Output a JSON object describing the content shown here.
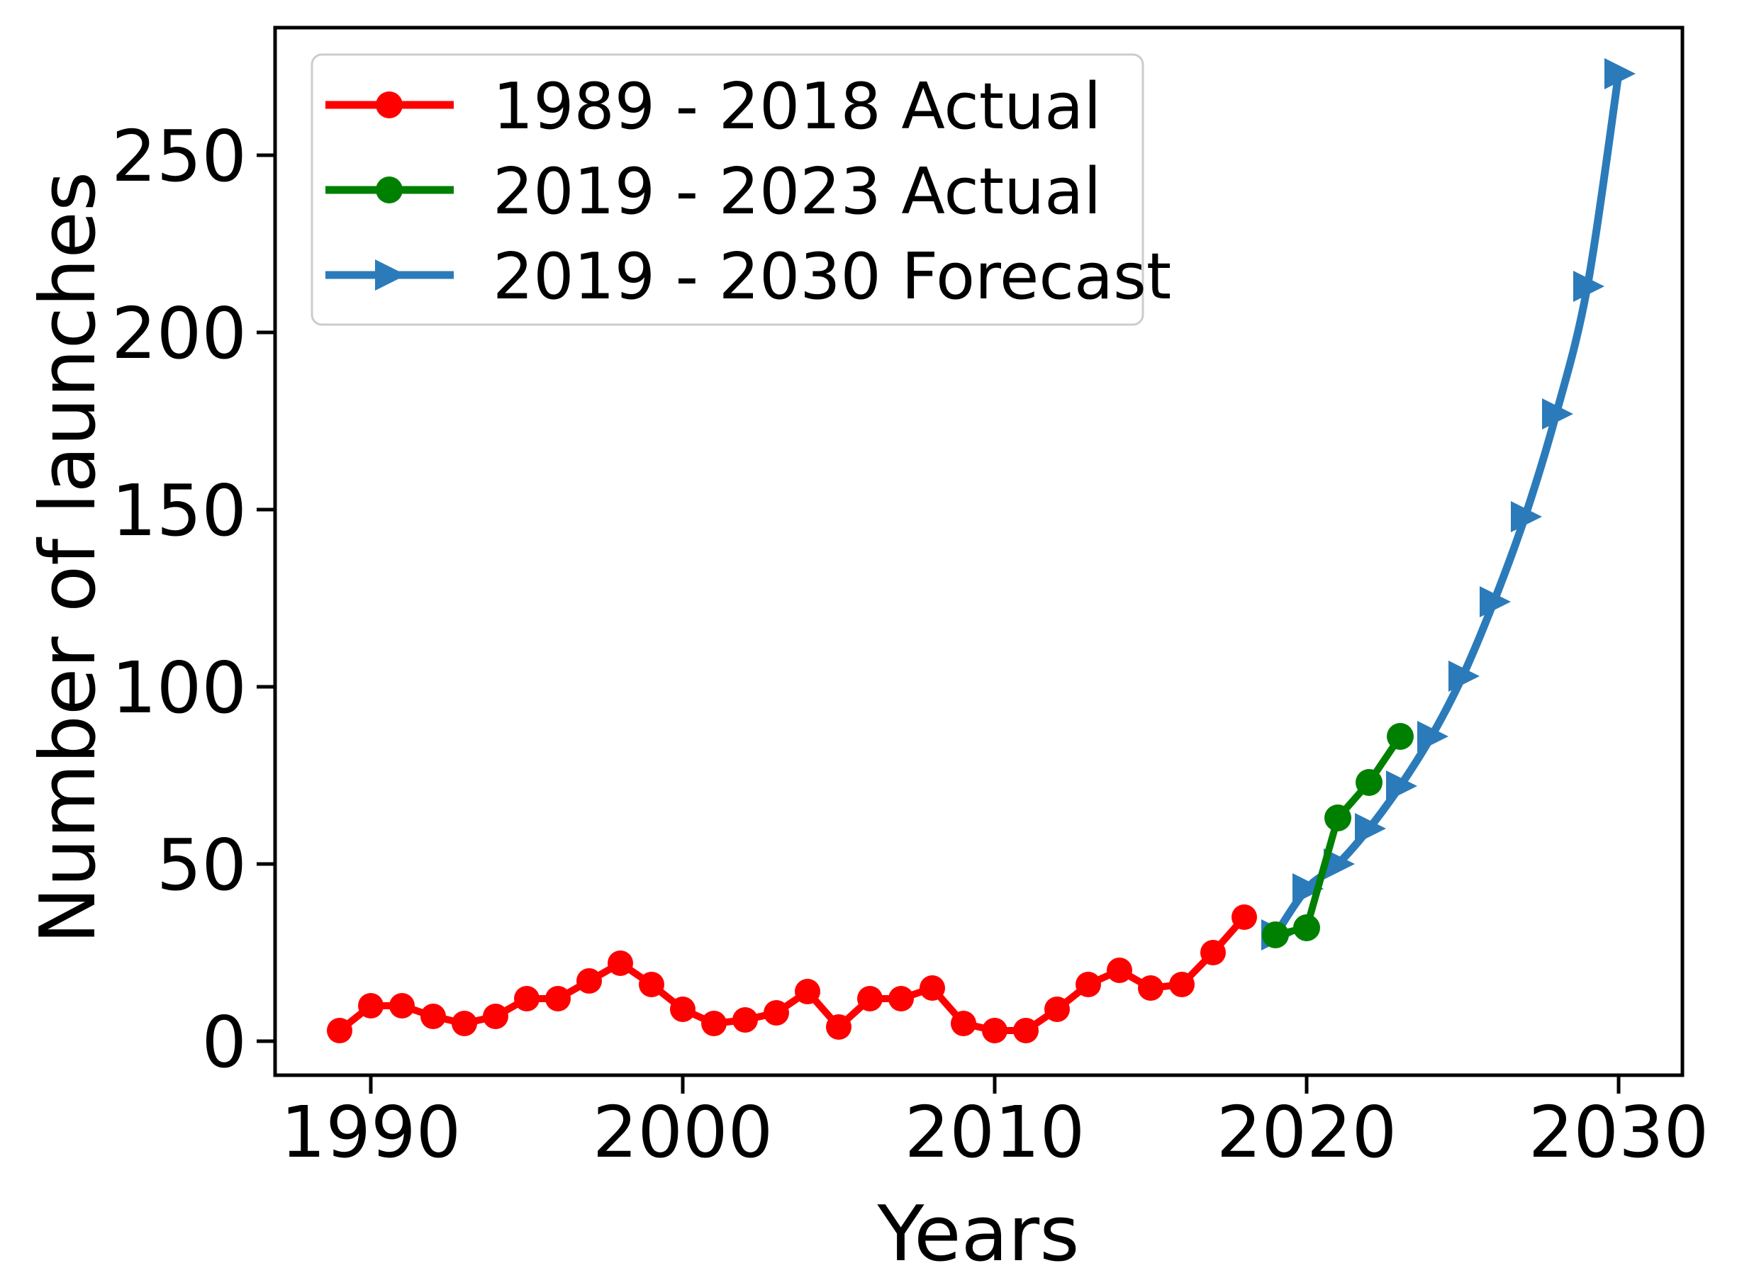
{
  "chart_data": {
    "type": "line",
    "title": "",
    "xlabel": "Years",
    "ylabel": "Number of launches",
    "x_ticks": [
      "1990",
      "2000",
      "2010",
      "2020",
      "2030"
    ],
    "x_tick_years": [
      1990,
      2000,
      2010,
      2020,
      2030
    ],
    "y_ticks": [
      0,
      50,
      100,
      150,
      200,
      250
    ],
    "xlim": [
      1987,
      2032
    ],
    "ylim": [
      -10,
      286
    ],
    "grid": false,
    "axis_color": "#000000",
    "legend": {
      "position": "upper left",
      "border_color": "#cccccc",
      "background": "#ffffff"
    },
    "series": [
      {
        "name": "1989 - 2018 Actual",
        "color": "#fe0000",
        "marker": "circle",
        "smooth": false,
        "x": [
          1989,
          1990,
          1991,
          1992,
          1993,
          1994,
          1995,
          1996,
          1997,
          1998,
          1999,
          2000,
          2001,
          2002,
          2003,
          2004,
          2005,
          2006,
          2007,
          2008,
          2009,
          2010,
          2011,
          2012,
          2013,
          2014,
          2015,
          2016,
          2017,
          2018
        ],
        "values": [
          3,
          10,
          10,
          7,
          5,
          7,
          12,
          12,
          17,
          22,
          16,
          9,
          5,
          6,
          8,
          14,
          4,
          12,
          12,
          15,
          5,
          3,
          3,
          9,
          16,
          20,
          15,
          16,
          25,
          35
        ]
      },
      {
        "name": "2019 - 2023 Actual",
        "color": "#008000",
        "marker": "circle",
        "smooth": false,
        "x": [
          2019,
          2020,
          2021,
          2022,
          2023
        ],
        "values": [
          30,
          32,
          63,
          73,
          86
        ]
      },
      {
        "name": "2019 - 2030 Forecast",
        "color": "#2b7bba",
        "marker": "triangle-right",
        "smooth": true,
        "x": [
          2019,
          2020,
          2021,
          2022,
          2023,
          2024,
          2025,
          2026,
          2027,
          2028,
          2029,
          2030
        ],
        "values": [
          30,
          43,
          50,
          60,
          72,
          86,
          103,
          124,
          148,
          177,
          213,
          273
        ]
      }
    ]
  }
}
